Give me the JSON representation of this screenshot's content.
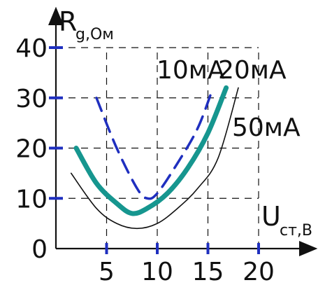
{
  "chart_data": {
    "type": "line",
    "ylabel": "R",
    "ylabel_sub": "g,Ом",
    "xlabel": "U",
    "xlabel_sub": "ст,В",
    "xlim": [
      0,
      20
    ],
    "ylim": [
      0,
      40
    ],
    "x_ticks": [
      5,
      10,
      15,
      20
    ],
    "y_ticks": [
      0,
      10,
      20,
      30,
      40
    ],
    "grid": true,
    "series": [
      {
        "name": "10мА",
        "color": "#1f2fbf",
        "style": "dashed",
        "x": [
          4,
          6,
          8,
          9,
          10,
          12,
          14,
          15.5
        ],
        "y": [
          30,
          20,
          12,
          10,
          11,
          17,
          24,
          32
        ]
      },
      {
        "name": "20мА",
        "color": "#16968f",
        "style": "thick",
        "x": [
          2,
          4,
          6,
          7.5,
          9,
          11,
          13,
          15,
          16.8
        ],
        "y": [
          20,
          13,
          9,
          7,
          8,
          11,
          16,
          23,
          32
        ]
      },
      {
        "name": "50мА",
        "color": "#111111",
        "style": "thin",
        "x": [
          1.5,
          4,
          6,
          8,
          10,
          12,
          14,
          16,
          18
        ],
        "y": [
          15,
          8,
          5,
          4,
          5,
          8,
          12,
          18,
          32
        ]
      }
    ]
  }
}
